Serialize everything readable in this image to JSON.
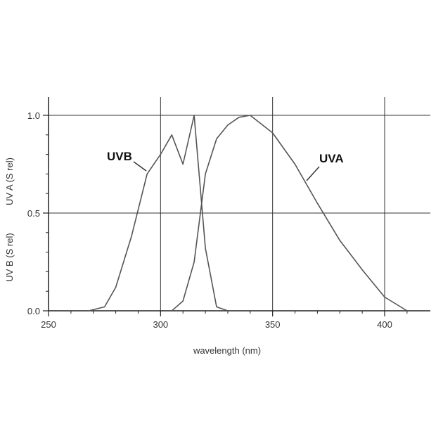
{
  "chart_data": {
    "type": "line",
    "title": "",
    "xlabel": "wavelength (nm)",
    "ylabel_lines": [
      "UV B (S rel)",
      "UV A (S rel)"
    ],
    "xlim": [
      250,
      420
    ],
    "ylim": [
      0,
      1.0
    ],
    "x_ticks": [
      250,
      300,
      350,
      400
    ],
    "x_tick_labels": [
      "250",
      "300",
      "350",
      "400"
    ],
    "y_ticks": [
      0,
      0.5,
      1.0
    ],
    "y_tick_labels": [
      "0.0",
      "0.5",
      "1.0"
    ],
    "grid": true,
    "series": [
      {
        "name": "UVB",
        "color": "#555555",
        "x": [
          268,
          275,
          280,
          287,
          294,
          300,
          305,
          310,
          315,
          320,
          325,
          330
        ],
        "y": [
          0.0,
          0.02,
          0.12,
          0.38,
          0.7,
          0.8,
          0.9,
          0.75,
          1.0,
          0.32,
          0.02,
          0.0
        ]
      },
      {
        "name": "UVA",
        "color": "#555555",
        "x": [
          305,
          310,
          315,
          320,
          325,
          330,
          335,
          340,
          350,
          360,
          370,
          380,
          390,
          400,
          410
        ],
        "y": [
          0.0,
          0.05,
          0.25,
          0.7,
          0.88,
          0.95,
          0.99,
          1.0,
          0.91,
          0.75,
          0.55,
          0.36,
          0.21,
          0.07,
          0.0
        ]
      }
    ]
  }
}
